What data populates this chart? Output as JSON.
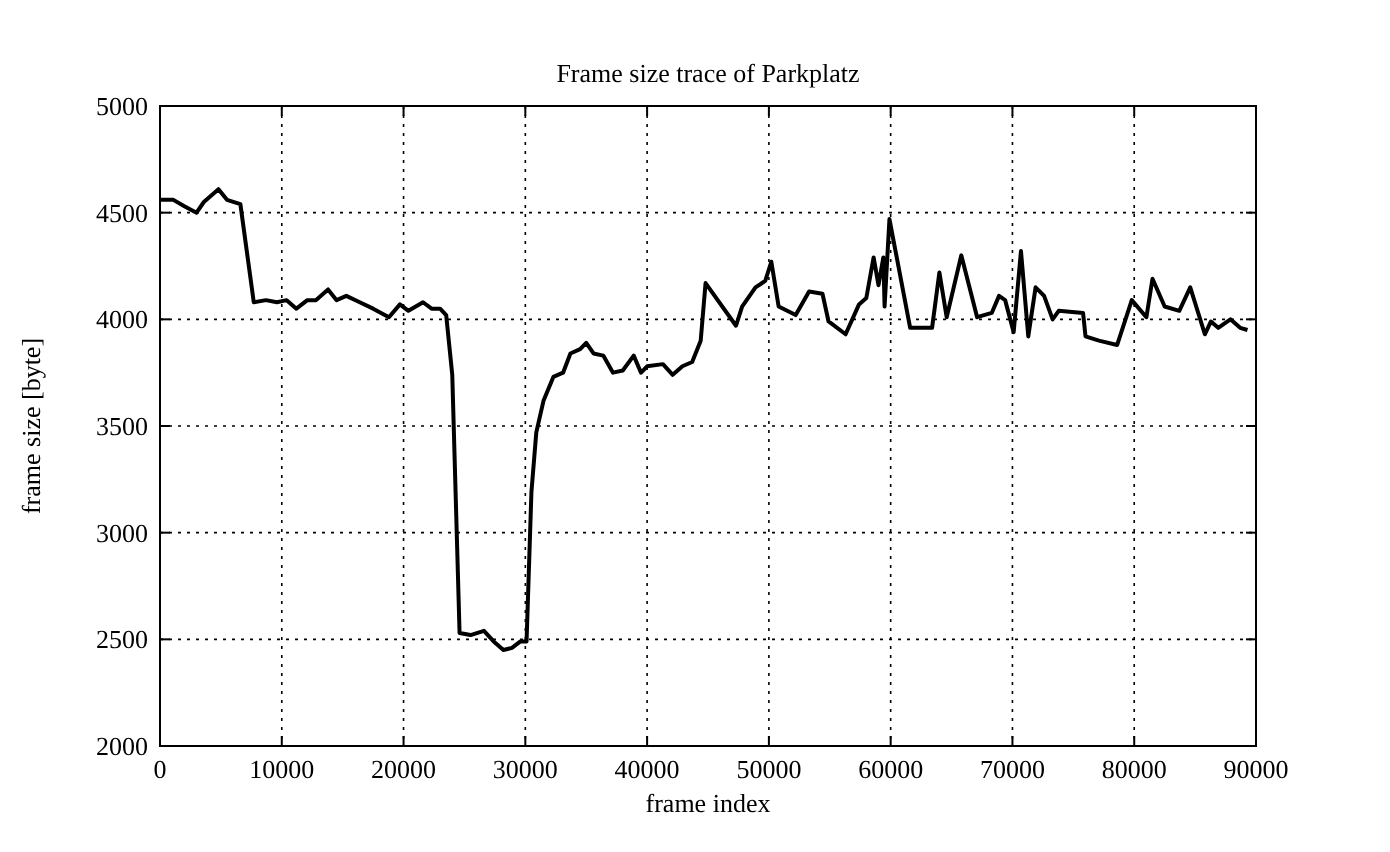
{
  "chart_data": {
    "type": "line",
    "title": "Frame size trace of Parkplatz",
    "xlabel": "frame index",
    "ylabel": "frame size [byte]",
    "x": [
      0,
      1100,
      2000,
      3000,
      3600,
      4800,
      5500,
      6600,
      7700,
      8700,
      9600,
      10400,
      11200,
      12100,
      12800,
      13800,
      14500,
      15300,
      16400,
      17500,
      18800,
      19700,
      20400,
      21600,
      22300,
      23000,
      23500,
      24000,
      24600,
      25500,
      26600,
      27400,
      28200,
      28900,
      29600,
      30100,
      30500,
      30900,
      31500,
      32300,
      33100,
      33700,
      34500,
      35000,
      35600,
      36400,
      37200,
      38000,
      38900,
      39500,
      40000,
      41300,
      42100,
      42900,
      43700,
      44400,
      44800,
      47300,
      47800,
      48900,
      49700,
      50200,
      50800,
      52200,
      53300,
      54400,
      54900,
      56300,
      57400,
      58000,
      58600,
      59000,
      59400,
      59500,
      59900,
      60400,
      61600,
      63400,
      64000,
      64600,
      65800,
      67100,
      68300,
      68900,
      69400,
      70100,
      70700,
      71300,
      71900,
      72600,
      73300,
      73800,
      75800,
      76000,
      77100,
      78600,
      79800,
      81000,
      81500,
      82500,
      83700,
      84600,
      85800,
      86300,
      86900,
      87900,
      88700,
      89300
    ],
    "series": [
      {
        "color": "#000000",
        "values": [
          4560,
          4560,
          4530,
          4500,
          4550,
          4610,
          4560,
          4540,
          4080,
          4090,
          4080,
          4090,
          4050,
          4090,
          4090,
          4140,
          4090,
          4110,
          4080,
          4050,
          4010,
          4070,
          4040,
          4080,
          4050,
          4050,
          4020,
          3740,
          2530,
          2520,
          2540,
          2490,
          2450,
          2460,
          2490,
          2490,
          3190,
          3470,
          3620,
          3730,
          3750,
          3840,
          3860,
          3890,
          3840,
          3830,
          3750,
          3760,
          3830,
          3750,
          3780,
          3790,
          3740,
          3780,
          3800,
          3900,
          4170,
          3970,
          4060,
          4150,
          4180,
          4270,
          4060,
          4020,
          4130,
          4120,
          3990,
          3930,
          4070,
          4100,
          4290,
          4160,
          4290,
          4060,
          4470,
          4320,
          3960,
          3960,
          4220,
          4010,
          4300,
          4010,
          4030,
          4110,
          4090,
          3940,
          4320,
          3920,
          4150,
          4110,
          4000,
          4040,
          4030,
          3920,
          3900,
          3880,
          4090,
          4010,
          4190,
          4060,
          4040,
          4150,
          3930,
          3990,
          3960,
          4000,
          3960,
          3950
        ]
      }
    ],
    "xlim": [
      0,
      90000
    ],
    "xticks": [
      0,
      10000,
      20000,
      30000,
      40000,
      50000,
      60000,
      70000,
      80000,
      90000
    ],
    "ylim": [
      2000,
      5000
    ],
    "yticks": [
      2000,
      2500,
      3000,
      3500,
      4000,
      4500,
      5000
    ],
    "grid": true,
    "marker": "none",
    "line_style": "solid"
  }
}
